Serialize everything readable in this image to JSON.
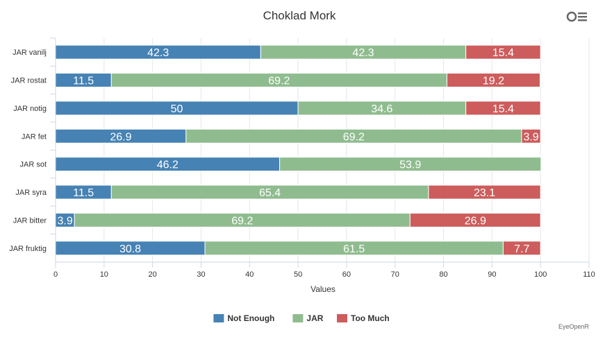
{
  "chart_data": {
    "type": "bar",
    "orientation": "horizontal",
    "stacked": true,
    "title": "Choklad Mork",
    "xlabel": "Values",
    "ylabel": "",
    "xlim": [
      0,
      110
    ],
    "xticks": [
      0,
      10,
      20,
      30,
      40,
      50,
      60,
      70,
      80,
      90,
      100,
      110
    ],
    "categories": [
      "JAR vanilj",
      "JAR rostat",
      "JAR notig",
      "JAR fet",
      "JAR sot",
      "JAR syra",
      "JAR bitter",
      "JAR fruktig"
    ],
    "series": [
      {
        "name": "Not Enough",
        "color": "#4682b4",
        "values": [
          42.3,
          11.5,
          50,
          26.9,
          46.2,
          11.5,
          3.9,
          30.8
        ]
      },
      {
        "name": "JAR",
        "color": "#8fbc8f",
        "values": [
          42.3,
          69.2,
          34.6,
          69.2,
          53.9,
          65.4,
          69.2,
          61.5
        ]
      },
      {
        "name": "Too Much",
        "color": "#cd5c5c",
        "values": [
          15.4,
          19.2,
          15.4,
          3.9,
          0,
          23.1,
          26.9,
          7.7
        ]
      }
    ],
    "legend_position": "bottom-center",
    "grid": true
  },
  "credit": "EyeOpenR",
  "menu_icon": "hamburger-menu-icon"
}
